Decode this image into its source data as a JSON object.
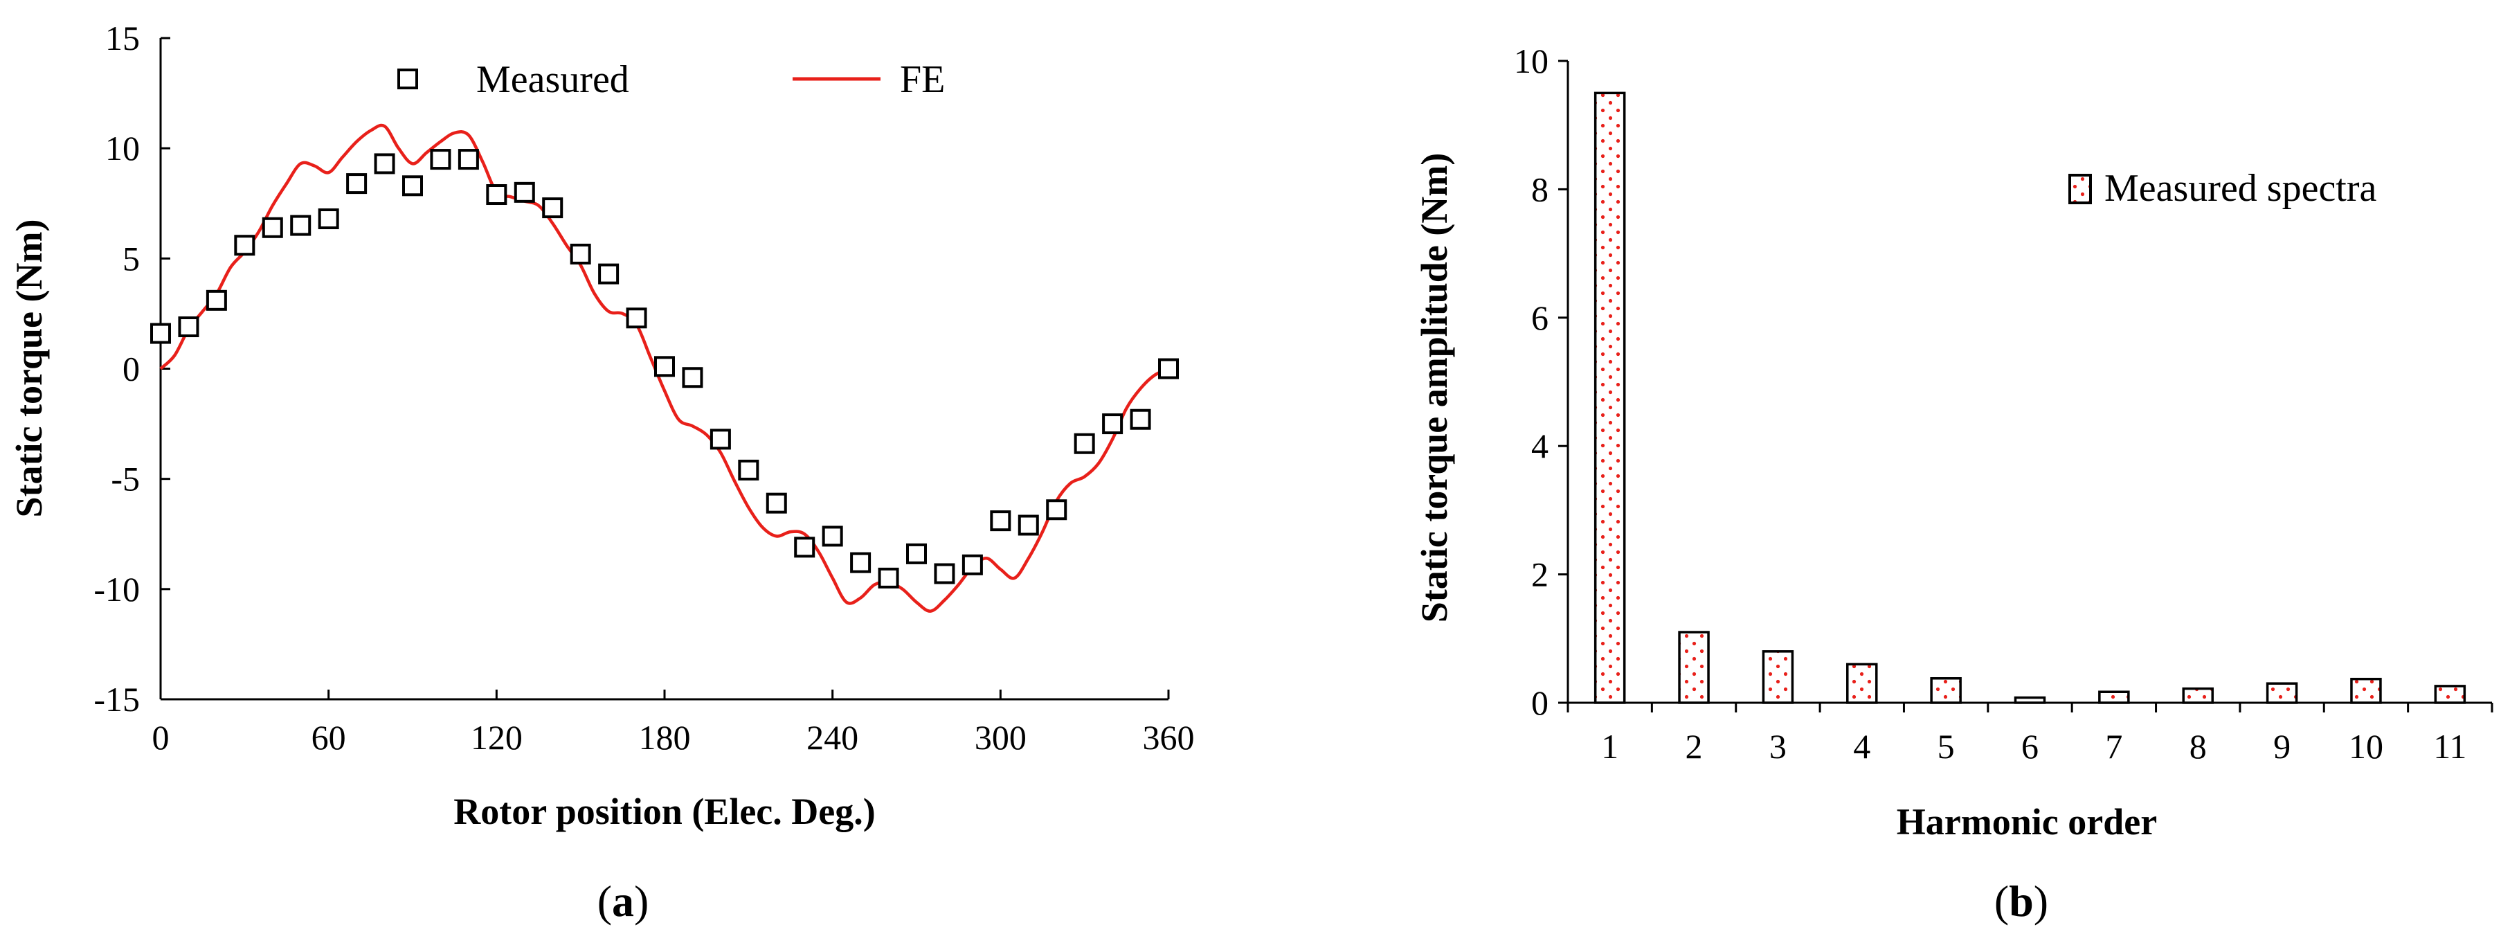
{
  "chart_data": [
    {
      "panel": "(a)",
      "panel_letter": "a",
      "type": "line",
      "title": "",
      "xlabel": "Rotor position  (Elec. Deg.)",
      "ylabel": "Static torque  (Nm)",
      "xlim": [
        0,
        360
      ],
      "ylim": [
        -15,
        15
      ],
      "xticks": [
        0,
        60,
        120,
        180,
        240,
        300,
        360
      ],
      "yticks": [
        -15,
        -10,
        -5,
        0,
        5,
        10,
        15
      ],
      "grid": false,
      "legend_position": "top",
      "series": [
        {
          "name": "Measured",
          "kind": "scatter",
          "marker": "hollow-square",
          "color": "#000000",
          "x": [
            0,
            10,
            20,
            30,
            40,
            50,
            60,
            70,
            80,
            90,
            100,
            110,
            120,
            130,
            140,
            150,
            160,
            170,
            180,
            190,
            200,
            210,
            220,
            230,
            240,
            250,
            260,
            270,
            280,
            290,
            300,
            310,
            320,
            330,
            340,
            350,
            360
          ],
          "y": [
            1.6,
            1.9,
            3.1,
            5.6,
            6.4,
            6.5,
            6.8,
            8.4,
            9.3,
            8.3,
            9.5,
            9.5,
            7.9,
            8.0,
            7.3,
            5.2,
            4.3,
            2.3,
            0.1,
            -0.4,
            -3.2,
            -4.6,
            -6.1,
            -8.1,
            -7.6,
            -8.8,
            -9.5,
            -8.4,
            -9.3,
            -8.9,
            -6.9,
            -7.1,
            -6.4,
            -3.4,
            -2.5,
            -2.3,
            0.0
          ]
        },
        {
          "name": "FE",
          "kind": "line",
          "color": "#e8201a",
          "x": [
            0,
            5,
            10,
            15,
            20,
            25,
            30,
            35,
            40,
            45,
            50,
            55,
            60,
            65,
            70,
            75,
            80,
            85,
            90,
            95,
            100,
            105,
            110,
            115,
            120,
            125,
            130,
            135,
            140,
            145,
            150,
            155,
            160,
            165,
            170,
            175,
            180,
            185,
            190,
            195,
            200,
            205,
            210,
            215,
            220,
            225,
            230,
            235,
            240,
            245,
            250,
            255,
            260,
            265,
            270,
            275,
            280,
            285,
            290,
            295,
            300,
            305,
            310,
            315,
            320,
            325,
            330,
            335,
            340,
            345,
            350,
            355,
            360
          ],
          "y": [
            0.0,
            0.6,
            1.8,
            2.6,
            3.4,
            4.6,
            5.3,
            6.2,
            7.4,
            8.4,
            9.3,
            9.2,
            8.9,
            9.6,
            10.3,
            10.8,
            11.0,
            10.0,
            9.3,
            9.8,
            10.3,
            10.7,
            10.6,
            9.4,
            8.0,
            7.8,
            7.6,
            7.4,
            6.6,
            5.6,
            4.7,
            3.4,
            2.6,
            2.5,
            2.0,
            0.5,
            -1.0,
            -2.3,
            -2.6,
            -3.0,
            -3.8,
            -5.1,
            -6.3,
            -7.2,
            -7.6,
            -7.4,
            -7.5,
            -8.3,
            -9.5,
            -10.6,
            -10.4,
            -9.8,
            -9.7,
            -10.0,
            -10.6,
            -11.0,
            -10.5,
            -9.8,
            -9.0,
            -8.6,
            -9.1,
            -9.5,
            -8.6,
            -7.4,
            -6.0,
            -5.2,
            -4.9,
            -4.3,
            -3.2,
            -1.8,
            -0.9,
            -0.3,
            0.0
          ]
        }
      ]
    },
    {
      "panel": "(b)",
      "panel_letter": "b",
      "type": "bar",
      "title": "",
      "xlabel": "Harmonic order",
      "ylabel": "Static torque amplitude (Nm)",
      "ylim": [
        0,
        10
      ],
      "yticks": [
        0,
        2,
        4,
        6,
        8,
        10
      ],
      "grid": false,
      "legend_position": "top-right",
      "categories": [
        "1",
        "2",
        "3",
        "4",
        "5",
        "6",
        "7",
        "8",
        "9",
        "10",
        "11"
      ],
      "series": [
        {
          "name": "Measured spectra",
          "pattern": "red-dotted",
          "color": "#e8201a",
          "values": [
            9.5,
            1.1,
            0.8,
            0.6,
            0.38,
            0.08,
            0.17,
            0.22,
            0.3,
            0.37,
            0.26
          ]
        }
      ]
    }
  ]
}
